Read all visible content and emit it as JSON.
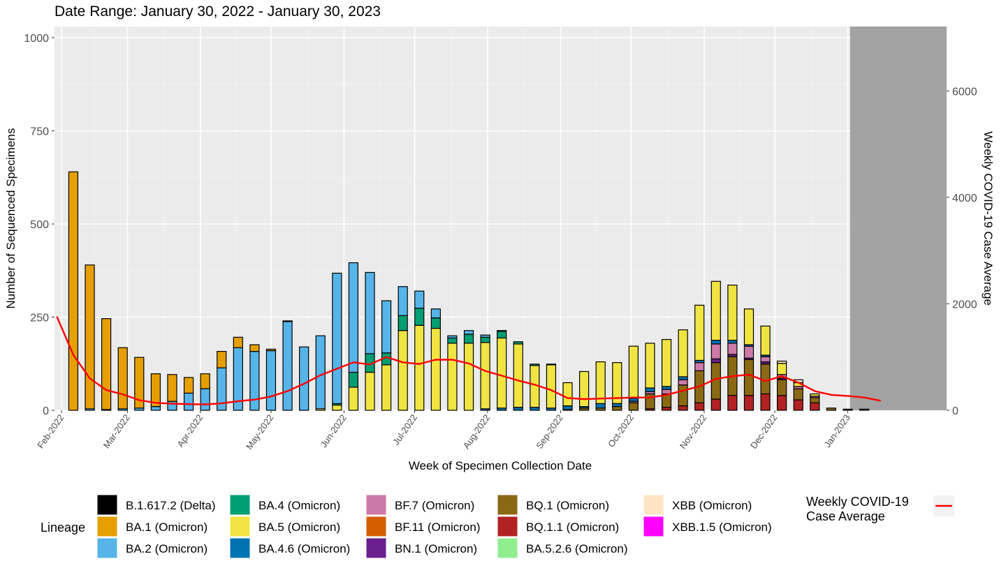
{
  "chart_data": {
    "type": "bar",
    "title": "Date Range: January 30, 2022 - January 30, 2023",
    "xlabel": "Week of Specimen Collection Date",
    "ylabel": "Number of Sequenced Specimens",
    "y2label": "Weekly COVID-19 Case Average",
    "ylim": [
      0,
      1030
    ],
    "y2lim": [
      0,
      7210
    ],
    "yticks": [
      0,
      250,
      500,
      750,
      1000
    ],
    "y2ticks": [
      0,
      2000,
      4000,
      6000
    ],
    "xlim": [
      "2022-01-29",
      "2023-02-12"
    ],
    "xticks": [
      {
        "date": "2022-02-01",
        "label": "Feb-2022"
      },
      {
        "date": "2022-03-01",
        "label": "Mar-2022"
      },
      {
        "date": "2022-04-01",
        "label": "Apr-2022"
      },
      {
        "date": "2022-05-01",
        "label": "May-2022"
      },
      {
        "date": "2022-06-01",
        "label": "Jun-2022"
      },
      {
        "date": "2022-07-01",
        "label": "Jul-2022"
      },
      {
        "date": "2022-08-01",
        "label": "Aug-2022"
      },
      {
        "date": "2022-09-01",
        "label": "Sep-2022"
      },
      {
        "date": "2022-10-01",
        "label": "Oct-2022"
      },
      {
        "date": "2022-11-01",
        "label": "Nov-2022"
      },
      {
        "date": "2022-12-01",
        "label": "Dec-2022"
      },
      {
        "date": "2023-01-01",
        "label": "Jan-2023"
      }
    ],
    "shaded_from": "2023-01-02",
    "grid": true,
    "legend_position": "bottom",
    "legend_title": "Lineage",
    "lineages": [
      {
        "name": "B.1.617.2 (Delta)",
        "color": "#000000"
      },
      {
        "name": "BA.1 (Omicron)",
        "color": "#E69F00"
      },
      {
        "name": "BA.2 (Omicron)",
        "color": "#56B4E9"
      },
      {
        "name": "BA.4 (Omicron)",
        "color": "#009E73"
      },
      {
        "name": "BA.5 (Omicron)",
        "color": "#F0E442"
      },
      {
        "name": "BA.4.6 (Omicron)",
        "color": "#0072B2"
      },
      {
        "name": "BF.7 (Omicron)",
        "color": "#CC79A7"
      },
      {
        "name": "BF.11 (Omicron)",
        "color": "#D55E00"
      },
      {
        "name": "BN.1 (Omicron)",
        "color": "#6A1F8F"
      },
      {
        "name": "BQ.1 (Omicron)",
        "color": "#8B6914"
      },
      {
        "name": "BQ.1.1 (Omicron)",
        "color": "#B22222"
      },
      {
        "name": "BA.5.2.6 (Omicron)",
        "color": "#90EE90"
      },
      {
        "name": "XBB (Omicron)",
        "color": "#FFE4C4"
      },
      {
        "name": "XBB.1.5 (Omicron)",
        "color": "#FF00FF"
      }
    ],
    "line_legend_label": "Weekly COVID-19 Case Average",
    "line_color": "#FF0000",
    "weeks": [
      {
        "date": "2022-02-06",
        "v": {
          "BA.1 (Omicron)": 640
        }
      },
      {
        "date": "2022-02-13",
        "v": {
          "BA.1 (Omicron)": 386,
          "BA.2 (Omicron)": 4
        }
      },
      {
        "date": "2022-02-20",
        "v": {
          "BA.1 (Omicron)": 244,
          "BA.2 (Omicron)": 2
        }
      },
      {
        "date": "2022-02-27",
        "v": {
          "BA.1 (Omicron)": 164,
          "BA.2 (Omicron)": 4
        }
      },
      {
        "date": "2022-03-06",
        "v": {
          "BA.1 (Omicron)": 136,
          "BA.2 (Omicron)": 6
        }
      },
      {
        "date": "2022-03-13",
        "v": {
          "BA.1 (Omicron)": 88,
          "BA.2 (Omicron)": 10
        }
      },
      {
        "date": "2022-03-20",
        "v": {
          "BA.1 (Omicron)": 72,
          "BA.2 (Omicron)": 24
        }
      },
      {
        "date": "2022-03-27",
        "v": {
          "BA.1 (Omicron)": 42,
          "BA.2 (Omicron)": 46
        }
      },
      {
        "date": "2022-04-03",
        "v": {
          "BA.1 (Omicron)": 40,
          "BA.2 (Omicron)": 58
        }
      },
      {
        "date": "2022-04-10",
        "v": {
          "BA.1 (Omicron)": 44,
          "BA.2 (Omicron)": 114
        }
      },
      {
        "date": "2022-04-17",
        "v": {
          "BA.1 (Omicron)": 28,
          "BA.2 (Omicron)": 168
        }
      },
      {
        "date": "2022-04-24",
        "v": {
          "BA.1 (Omicron)": 18,
          "BA.2 (Omicron)": 158
        }
      },
      {
        "date": "2022-05-01",
        "v": {
          "BA.1 (Omicron)": 4,
          "BA.2 (Omicron)": 160
        }
      },
      {
        "date": "2022-05-08",
        "v": {
          "BA.1 (Omicron)": 2,
          "BA.2 (Omicron)": 238
        }
      },
      {
        "date": "2022-05-15",
        "v": {
          "BA.2 (Omicron)": 170
        }
      },
      {
        "date": "2022-05-22",
        "v": {
          "BA.2 (Omicron)": 196,
          "BA.5 (Omicron)": 4
        }
      },
      {
        "date": "2022-05-29",
        "v": {
          "BA.2 (Omicron)": 350,
          "BA.4 (Omicron)": 4,
          "BA.5 (Omicron)": 14
        }
      },
      {
        "date": "2022-06-05",
        "v": {
          "BA.2 (Omicron)": 294,
          "BA.4 (Omicron)": 40,
          "BA.5 (Omicron)": 62
        }
      },
      {
        "date": "2022-06-12",
        "v": {
          "BA.2 (Omicron)": 218,
          "BA.4 (Omicron)": 50,
          "BA.5 (Omicron)": 102
        }
      },
      {
        "date": "2022-06-19",
        "v": {
          "BA.2 (Omicron)": 140,
          "BA.4 (Omicron)": 32,
          "BA.5 (Omicron)": 122
        }
      },
      {
        "date": "2022-06-26",
        "v": {
          "BA.2 (Omicron)": 78,
          "BA.4 (Omicron)": 40,
          "BA.5 (Omicron)": 214
        }
      },
      {
        "date": "2022-07-03",
        "v": {
          "BA.2 (Omicron)": 46,
          "BA.4 (Omicron)": 46,
          "BA.5 (Omicron)": 228
        }
      },
      {
        "date": "2022-07-10",
        "v": {
          "BA.2 (Omicron)": 24,
          "BA.4 (Omicron)": 28,
          "BA.5 (Omicron)": 220
        }
      },
      {
        "date": "2022-07-17",
        "v": {
          "BA.2 (Omicron)": 6,
          "BA.4 (Omicron)": 14,
          "BA.5 (Omicron)": 180
        }
      },
      {
        "date": "2022-07-24",
        "v": {
          "BA.2 (Omicron)": 10,
          "BA.4 (Omicron)": 24,
          "BA.5 (Omicron)": 180
        }
      },
      {
        "date": "2022-07-31",
        "v": {
          "BA.2 (Omicron)": 6,
          "BA.4 (Omicron)": 14,
          "BA.5 (Omicron)": 178,
          "BA.4.6 (Omicron)": 4
        }
      },
      {
        "date": "2022-08-07",
        "v": {
          "BA.2 (Omicron)": 2,
          "BA.4 (Omicron)": 18,
          "BA.5 (Omicron)": 188,
          "BA.4.6 (Omicron)": 6
        }
      },
      {
        "date": "2022-08-14",
        "v": {
          "BA.4 (Omicron)": 6,
          "BA.5 (Omicron)": 170,
          "BA.4.6 (Omicron)": 8
        }
      },
      {
        "date": "2022-08-21",
        "v": {
          "BA.4 (Omicron)": 4,
          "BA.5 (Omicron)": 112,
          "BA.4.6 (Omicron)": 8
        }
      },
      {
        "date": "2022-08-28",
        "v": {
          "BA.4 (Omicron)": 2,
          "BA.5 (Omicron)": 116,
          "BA.4.6 (Omicron)": 6
        }
      },
      {
        "date": "2022-09-04",
        "v": {
          "BA.5 (Omicron)": 62,
          "BA.4.6 (Omicron)": 10,
          "BQ.1 (Omicron)": 2
        }
      },
      {
        "date": "2022-09-11",
        "v": {
          "BA.5 (Omicron)": 94,
          "BA.4.6 (Omicron)": 4,
          "BQ.1 (Omicron)": 6
        }
      },
      {
        "date": "2022-09-18",
        "v": {
          "BA.5 (Omicron)": 112,
          "BA.4.6 (Omicron)": 12,
          "BQ.1 (Omicron)": 6
        }
      },
      {
        "date": "2022-09-25",
        "v": {
          "BA.5 (Omicron)": 110,
          "BA.4.6 (Omicron)": 8,
          "BQ.1 (Omicron)": 10
        }
      },
      {
        "date": "2022-10-02",
        "v": {
          "BA.5 (Omicron)": 140,
          "BA.4.6 (Omicron)": 8,
          "BQ.1 (Omicron)": 20,
          "BF.7 (Omicron)": 4
        }
      },
      {
        "date": "2022-10-09",
        "v": {
          "BA.5 (Omicron)": 120,
          "BA.4.6 (Omicron)": 10,
          "BQ.1 (Omicron)": 40,
          "BF.7 (Omicron)": 6,
          "BQ.1.1 (Omicron)": 4
        }
      },
      {
        "date": "2022-10-16",
        "v": {
          "BA.5 (Omicron)": 126,
          "BA.4.6 (Omicron)": 8,
          "BQ.1 (Omicron)": 36,
          "BF.7 (Omicron)": 12,
          "BQ.1.1 (Omicron)": 8
        }
      },
      {
        "date": "2022-10-23",
        "v": {
          "BA.5 (Omicron)": 126,
          "BA.4.6 (Omicron)": 8,
          "BQ.1 (Omicron)": 56,
          "BF.7 (Omicron)": 14,
          "BQ.1.1 (Omicron)": 12
        }
      },
      {
        "date": "2022-10-30",
        "v": {
          "BA.5 (Omicron)": 148,
          "BA.4.6 (Omicron)": 6,
          "BQ.1 (Omicron)": 86,
          "BF.7 (Omicron)": 22,
          "BQ.1.1 (Omicron)": 20
        }
      },
      {
        "date": "2022-11-06",
        "v": {
          "BA.5 (Omicron)": 158,
          "BA.4.6 (Omicron)": 10,
          "BQ.1 (Omicron)": 98,
          "BF.7 (Omicron)": 40,
          "BQ.1.1 (Omicron)": 30,
          "BN.1 (Omicron)": 10
        }
      },
      {
        "date": "2022-11-13",
        "v": {
          "BA.5 (Omicron)": 148,
          "BA.4.6 (Omicron)": 8,
          "BQ.1 (Omicron)": 104,
          "BF.7 (Omicron)": 30,
          "BQ.1.1 (Omicron)": 40,
          "BN.1 (Omicron)": 6
        }
      },
      {
        "date": "2022-11-20",
        "v": {
          "BA.5 (Omicron)": 96,
          "BA.4.6 (Omicron)": 4,
          "BQ.1 (Omicron)": 96,
          "BF.7 (Omicron)": 32,
          "BQ.1.1 (Omicron)": 40,
          "BN.1 (Omicron)": 4
        }
      },
      {
        "date": "2022-11-27",
        "v": {
          "BA.5 (Omicron)": 78,
          "BA.4.6 (Omicron)": 4,
          "BQ.1 (Omicron)": 80,
          "BF.7 (Omicron)": 14,
          "BQ.1.1 (Omicron)": 44,
          "BN.1 (Omicron)": 6
        }
      },
      {
        "date": "2022-12-04",
        "v": {
          "BA.5 (Omicron)": 30,
          "BQ.1 (Omicron)": 42,
          "BF.7 (Omicron)": 10,
          "BQ.1.1 (Omicron)": 40,
          "BN.1 (Omicron)": 4,
          "XBB (Omicron)": 6
        }
      },
      {
        "date": "2022-12-11",
        "v": {
          "BA.5 (Omicron)": 10,
          "BQ.1 (Omicron)": 30,
          "BQ.1.1 (Omicron)": 28,
          "BF.7 (Omicron)": 6,
          "XBB (Omicron)": 8
        }
      },
      {
        "date": "2022-12-18",
        "v": {
          "BA.5 (Omicron)": 6,
          "BQ.1 (Omicron)": 14,
          "BQ.1.1 (Omicron)": 20,
          "BF.7 (Omicron)": 4
        }
      },
      {
        "date": "2022-12-25",
        "v": {
          "BQ.1 (Omicron)": 6
        }
      },
      {
        "date": "2023-01-01",
        "v": {
          "BQ.1 (Omicron)": 3
        }
      },
      {
        "date": "2023-01-08",
        "v": {
          "BQ.1 (Omicron)": 3
        }
      }
    ],
    "case_average": [
      {
        "date": "2022-01-30",
        "value": 1760
      },
      {
        "date": "2022-02-06",
        "value": 1040
      },
      {
        "date": "2022-02-13",
        "value": 600
      },
      {
        "date": "2022-02-20",
        "value": 380
      },
      {
        "date": "2022-02-27",
        "value": 300
      },
      {
        "date": "2022-03-06",
        "value": 190
      },
      {
        "date": "2022-03-13",
        "value": 140
      },
      {
        "date": "2022-03-20",
        "value": 125
      },
      {
        "date": "2022-03-27",
        "value": 115
      },
      {
        "date": "2022-04-03",
        "value": 110
      },
      {
        "date": "2022-04-10",
        "value": 130
      },
      {
        "date": "2022-04-17",
        "value": 170
      },
      {
        "date": "2022-04-24",
        "value": 200
      },
      {
        "date": "2022-05-01",
        "value": 260
      },
      {
        "date": "2022-05-08",
        "value": 360
      },
      {
        "date": "2022-05-15",
        "value": 500
      },
      {
        "date": "2022-05-22",
        "value": 660
      },
      {
        "date": "2022-05-29",
        "value": 780
      },
      {
        "date": "2022-06-05",
        "value": 900
      },
      {
        "date": "2022-06-12",
        "value": 860
      },
      {
        "date": "2022-06-19",
        "value": 1000
      },
      {
        "date": "2022-06-26",
        "value": 900
      },
      {
        "date": "2022-07-03",
        "value": 870
      },
      {
        "date": "2022-07-10",
        "value": 950
      },
      {
        "date": "2022-07-17",
        "value": 950
      },
      {
        "date": "2022-07-24",
        "value": 880
      },
      {
        "date": "2022-07-31",
        "value": 740
      },
      {
        "date": "2022-08-07",
        "value": 650
      },
      {
        "date": "2022-08-14",
        "value": 560
      },
      {
        "date": "2022-08-21",
        "value": 480
      },
      {
        "date": "2022-08-28",
        "value": 380
      },
      {
        "date": "2022-09-04",
        "value": 230
      },
      {
        "date": "2022-09-11",
        "value": 210
      },
      {
        "date": "2022-09-18",
        "value": 220
      },
      {
        "date": "2022-09-25",
        "value": 230
      },
      {
        "date": "2022-10-02",
        "value": 240
      },
      {
        "date": "2022-10-09",
        "value": 240
      },
      {
        "date": "2022-10-16",
        "value": 290
      },
      {
        "date": "2022-10-23",
        "value": 370
      },
      {
        "date": "2022-10-30",
        "value": 450
      },
      {
        "date": "2022-11-06",
        "value": 590
      },
      {
        "date": "2022-11-13",
        "value": 640
      },
      {
        "date": "2022-11-20",
        "value": 670
      },
      {
        "date": "2022-11-27",
        "value": 550
      },
      {
        "date": "2022-12-04",
        "value": 640
      },
      {
        "date": "2022-12-11",
        "value": 520
      },
      {
        "date": "2022-12-18",
        "value": 360
      },
      {
        "date": "2022-12-25",
        "value": 290
      },
      {
        "date": "2023-01-01",
        "value": 270
      },
      {
        "date": "2023-01-08",
        "value": 240
      },
      {
        "date": "2023-01-15",
        "value": 180
      }
    ]
  }
}
